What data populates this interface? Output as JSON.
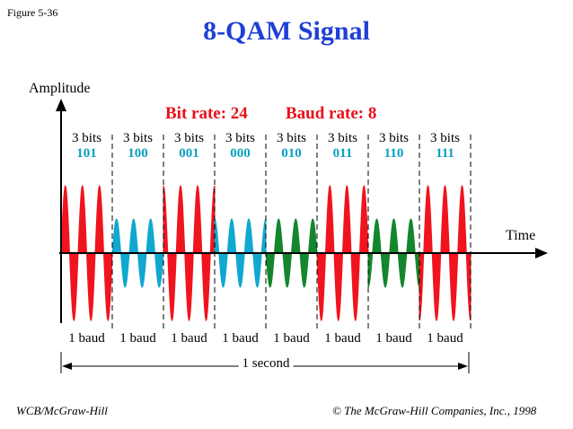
{
  "figure_label": "Figure 5-36",
  "title": "8-QAM Signal",
  "axis": {
    "y_label": "Amplitude",
    "x_label": "Time"
  },
  "bit_rate": "Bit rate: 24",
  "baud_rate": "Baud rate: 8",
  "segments": [
    {
      "bits": "3 bits",
      "code": "101",
      "baud": "1 baud",
      "amplitude": "high",
      "phase": 0
    },
    {
      "bits": "3 bits",
      "code": "100",
      "baud": "1 baud",
      "amplitude": "low",
      "phase": 0
    },
    {
      "bits": "3 bits",
      "code": "001",
      "baud": "1 baud",
      "amplitude": "high",
      "phase": 90
    },
    {
      "bits": "3 bits",
      "code": "000",
      "baud": "1 baud",
      "amplitude": "low",
      "phase": 90
    },
    {
      "bits": "3 bits",
      "code": "010",
      "baud": "1 baud",
      "amplitude": "low",
      "phase": 180
    },
    {
      "bits": "3 bits",
      "code": "011",
      "baud": "1 baud",
      "amplitude": "high",
      "phase": 180
    },
    {
      "bits": "3 bits",
      "code": "110",
      "baud": "1 baud",
      "amplitude": "low",
      "phase": 270
    },
    {
      "bits": "3 bits",
      "code": "111",
      "baud": "1 baud",
      "amplitude": "high",
      "phase": 270
    }
  ],
  "duration_label": "1 second",
  "footer_left": "WCB/McGraw-Hill",
  "footer_right": "© The McGraw-Hill Companies, Inc., 1998",
  "colors": {
    "title": "#1f3fd6",
    "rate_text": "#e8101a",
    "code_text": "#0aa0c0",
    "wave_red": "#f0141e",
    "wave_cyan": "#10a8d0",
    "wave_green": "#14862e"
  }
}
